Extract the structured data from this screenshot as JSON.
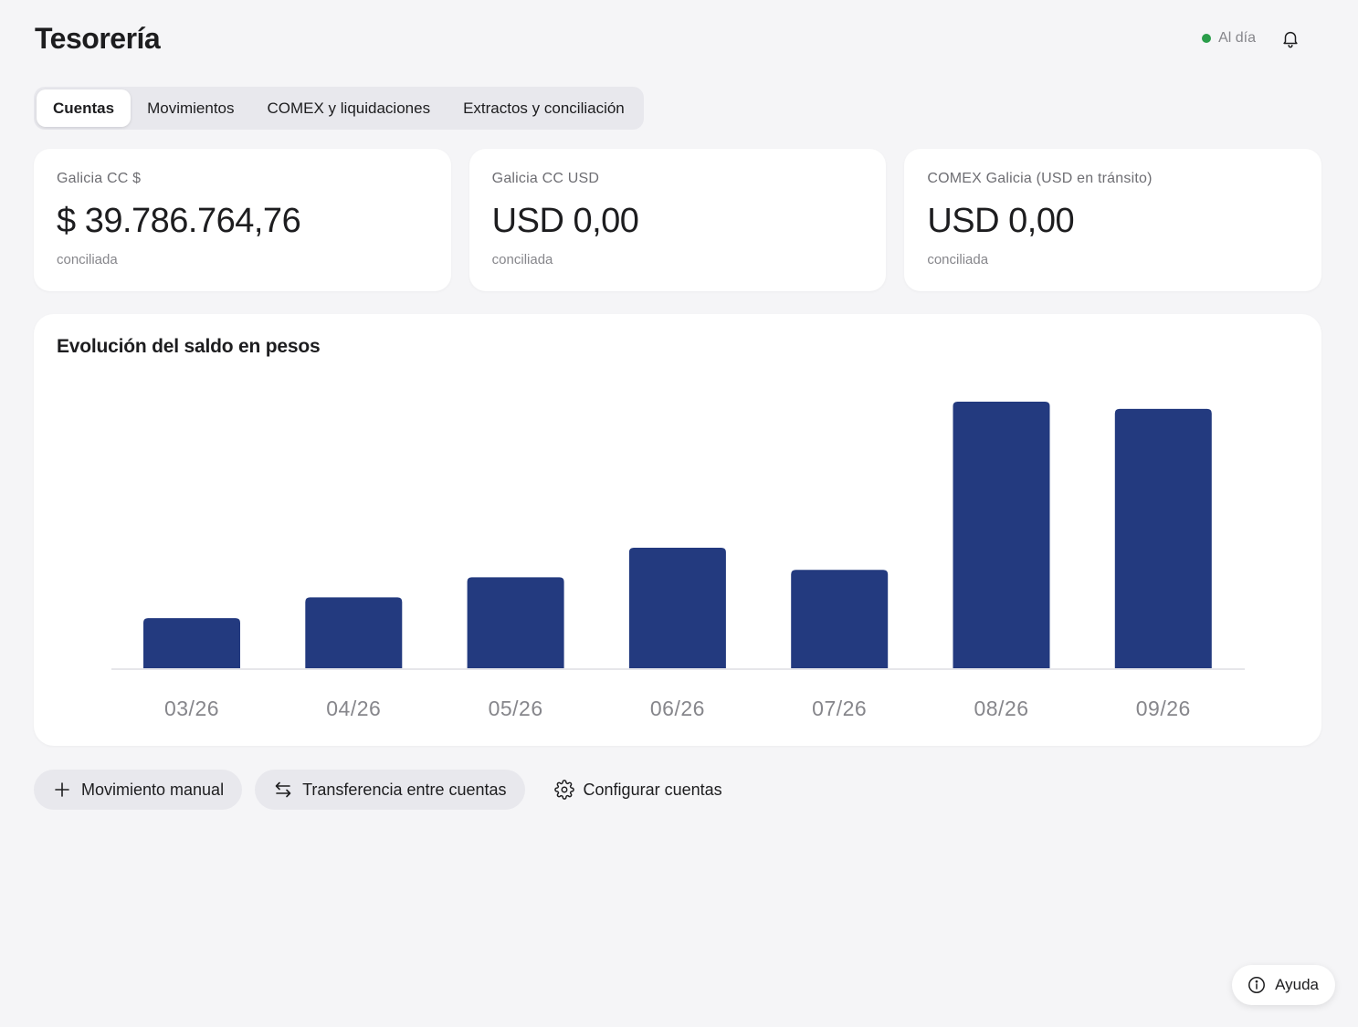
{
  "header": {
    "title": "Tesorería",
    "status_label": "Al día",
    "status_color": "#2a9d4a",
    "bell_icon": "bell-icon"
  },
  "tabs": [
    {
      "label": "Cuentas",
      "active": true
    },
    {
      "label": "Movimientos",
      "active": false
    },
    {
      "label": "COMEX y liquidaciones",
      "active": false
    },
    {
      "label": "Extractos y conciliación",
      "active": false
    }
  ],
  "cards": [
    {
      "label": "Galicia CC $",
      "value": "$ 39.786.764,76",
      "status": "conciliada"
    },
    {
      "label": "Galicia CC USD",
      "value": "USD 0,00",
      "status": "conciliada"
    },
    {
      "label": "COMEX Galicia (USD en tránsito)",
      "value": "USD 0,00",
      "status": "conciliada"
    }
  ],
  "chart_data": {
    "type": "bar",
    "title": "Evolución del saldo en pesos",
    "categories": [
      "03/26",
      "04/26",
      "05/26",
      "06/26",
      "07/26",
      "08/26",
      "09/26"
    ],
    "values": [
      18.8,
      26.6,
      34.1,
      45.2,
      36.9,
      100,
      97.3
    ],
    "ylim": [
      0,
      100
    ],
    "grid": false,
    "legend": "none",
    "bar_color": "#233a7f",
    "baseline_color": "#e6e6ea"
  },
  "actions": [
    {
      "label": "Movimiento manual",
      "icon": "plus-icon"
    },
    {
      "label": "Transferencia entre cuentas",
      "icon": "swap-arrows-icon"
    },
    {
      "label": "Configurar cuentas",
      "icon": "gear-icon"
    }
  ],
  "help": {
    "label": "Ayuda",
    "icon": "info-icon"
  }
}
